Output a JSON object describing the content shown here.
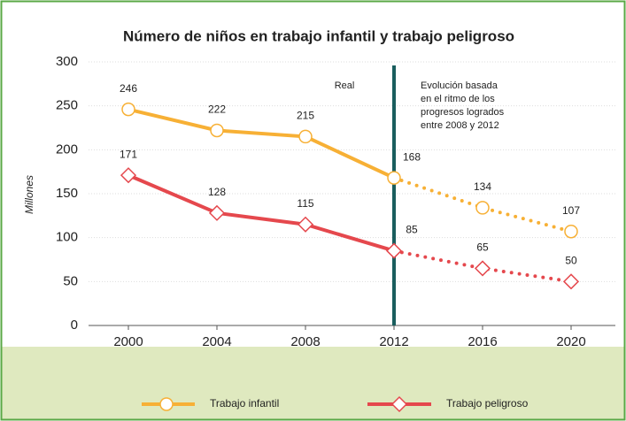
{
  "chart_data": {
    "type": "line",
    "title": "Número de niños en trabajo infantil y trabajo peligroso",
    "y_label": "Millones",
    "annotation_left": "Real",
    "annotation_right": [
      "Evolución basada",
      "en el ritmo de los",
      "progresos logrados",
      "entre 2008 y 2012"
    ],
    "divider": 2012,
    "x": [
      2000,
      2004,
      2008,
      2012,
      2016,
      2020
    ],
    "series": [
      {
        "name": "Trabajo infantil",
        "color": "#f7b035",
        "marker": "circle",
        "values": [
          246,
          222,
          215,
          168,
          134,
          107
        ]
      },
      {
        "name": "Trabajo peligroso",
        "color": "#e5484d",
        "marker": "diamond",
        "values": [
          171,
          128,
          115,
          85,
          65,
          50
        ]
      }
    ],
    "xlim": [
      1998.2,
      2022
    ],
    "xticks": [
      2000,
      2004,
      2008,
      2012,
      2016,
      2020
    ],
    "ylim": [
      0,
      300
    ],
    "yticks": [
      0,
      50,
      100,
      150,
      200,
      250,
      300
    ],
    "grid": true
  }
}
